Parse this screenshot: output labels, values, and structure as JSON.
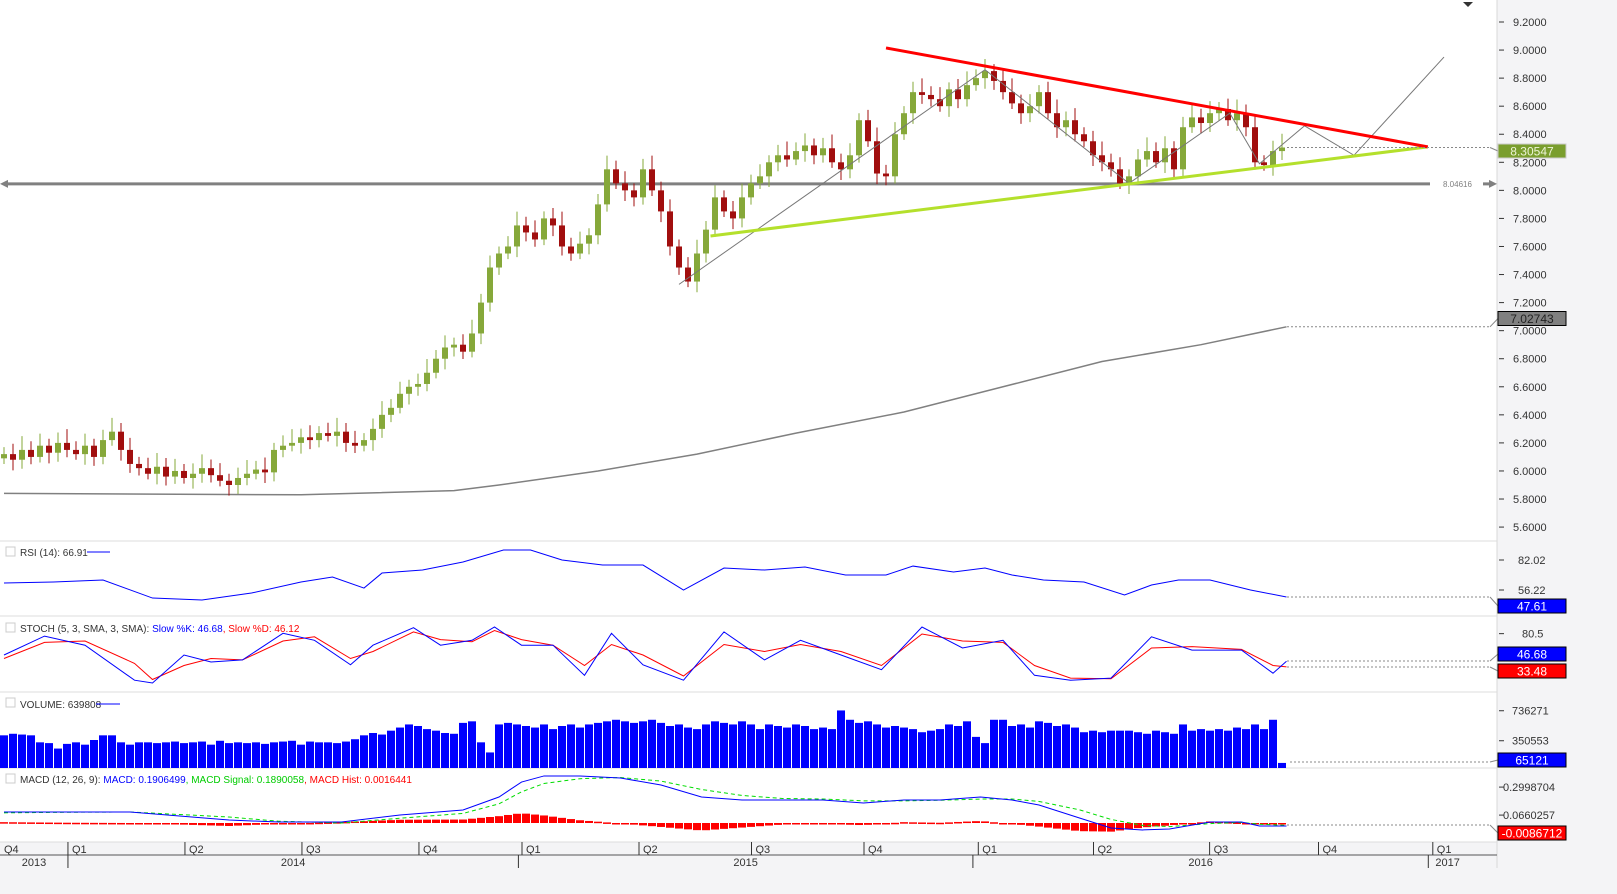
{
  "x_axis": {
    "quarters": [
      [
        "Q4",
        0
      ],
      [
        "Q1",
        7.55
      ],
      [
        "Q2",
        20.55
      ],
      [
        "Q3",
        33.55
      ],
      [
        "Q4",
        46.55
      ],
      [
        "Q1",
        58
      ],
      [
        "Q2",
        71
      ],
      [
        "Q3",
        83.5
      ],
      [
        "Q4",
        96
      ],
      [
        "Q1",
        108.7
      ],
      [
        "Q2",
        121.5
      ],
      [
        "Q3",
        134.4
      ],
      [
        "Q4",
        146.5
      ],
      [
        "Q1",
        159.2
      ]
    ],
    "years": [
      [
        "2013",
        0,
        7.55
      ],
      [
        "2014",
        7.55,
        57.6
      ],
      [
        "2015",
        57.6,
        108.1
      ],
      [
        "2016",
        108.1,
        158.7
      ],
      [
        "2017",
        158.7,
        163
      ]
    ]
  },
  "chart_data": [
    {
      "type": "candlestick",
      "panel": "price",
      "yticks": [
        "9.2000",
        "9.0000",
        "8.8000",
        "8.6000",
        "8.4000",
        "8.2000",
        "8.0000",
        "7.8000",
        "7.6000",
        "7.4000",
        "7.2000",
        "7.0000",
        "6.8000",
        "6.6000",
        "6.4000",
        "6.2000",
        "6.0000",
        "5.8000",
        "5.6000"
      ],
      "ylim": [
        5.6,
        9.2
      ],
      "closes": [
        6.12,
        6.08,
        6.15,
        6.1,
        6.18,
        6.13,
        6.2,
        6.15,
        6.12,
        6.18,
        6.1,
        6.22,
        6.28,
        6.15,
        6.05,
        6.02,
        5.98,
        6.03,
        5.96,
        6.0,
        5.95,
        5.98,
        6.02,
        5.97,
        5.93,
        5.9,
        5.95,
        5.98,
        6.01,
        5.99,
        6.15,
        6.18,
        6.2,
        6.24,
        6.22,
        6.27,
        6.25,
        6.28,
        6.2,
        6.18,
        6.22,
        6.3,
        6.4,
        6.45,
        6.55,
        6.6,
        6.62,
        6.7,
        6.8,
        6.88,
        6.9,
        6.85,
        6.98,
        7.2,
        7.45,
        7.55,
        7.6,
        7.75,
        7.7,
        7.65,
        7.8,
        7.75,
        7.6,
        7.55,
        7.62,
        7.68,
        7.9,
        8.15,
        8.05,
        8.0,
        7.95,
        8.15,
        8.0,
        7.85,
        7.6,
        7.45,
        7.35,
        7.55,
        7.72,
        7.95,
        7.85,
        7.8,
        7.95,
        8.05,
        8.1,
        8.2,
        8.25,
        8.22,
        8.28,
        8.32,
        8.25,
        8.3,
        8.2,
        8.15,
        8.25,
        8.5,
        8.35,
        8.12,
        8.1,
        8.4,
        8.55,
        8.7,
        8.68,
        8.65,
        8.6,
        8.72,
        8.65,
        8.75,
        8.8,
        8.85,
        8.78,
        8.7,
        8.62,
        8.55,
        8.6,
        8.7,
        8.55,
        8.45,
        8.5,
        8.4,
        8.35,
        8.25,
        8.2,
        8.15,
        8.05,
        8.1,
        8.22,
        8.28,
        8.2,
        8.3,
        8.15,
        8.45,
        8.52,
        8.48,
        8.55,
        8.58,
        8.5,
        8.55,
        8.45,
        8.2,
        8.18,
        8.28,
        8.30547
      ],
      "moving_average": [
        [
          0,
          5.84
        ],
        [
          33,
          5.83
        ],
        [
          50,
          5.86
        ],
        [
          55,
          5.9
        ],
        [
          66,
          6.0
        ],
        [
          77,
          6.12
        ],
        [
          88,
          6.27
        ],
        [
          100,
          6.42
        ],
        [
          111,
          6.6
        ],
        [
          122,
          6.78
        ],
        [
          133,
          6.9
        ],
        [
          142.5,
          7.02743
        ]
      ],
      "trendline_resistance": [
        [
          98,
          9.015
        ],
        [
          158.2,
          8.31
        ]
      ],
      "trendline_support": [
        [
          78.5,
          7.675
        ],
        [
          158.2,
          8.31
        ]
      ],
      "projection_path": [
        [
          75,
          7.33
        ],
        [
          109,
          8.86
        ],
        [
          125,
          8.05
        ],
        [
          136.2,
          8.55
        ],
        [
          139.5,
          8.19
        ],
        [
          144.5,
          8.46
        ],
        [
          150,
          8.25
        ],
        [
          160,
          8.95
        ]
      ],
      "horizontal_level": {
        "value": 8.04616,
        "label": "8.04616"
      },
      "last_price": {
        "value": 8.30547,
        "label": "8.30547"
      },
      "ma_last": {
        "value": 7.02743,
        "label": "7.02743"
      },
      "colors": {
        "up": "#86a83a",
        "down": "#a10e0e",
        "resistance": "#ff0000",
        "support": "#b4e02c",
        "level": "#808080",
        "ma": "#808080"
      }
    },
    {
      "type": "line",
      "panel": "rsi",
      "legend": "RSI (14): 66.91",
      "yticks": [
        "82.02",
        "56.22"
      ],
      "x": [
        0,
        5.5,
        11,
        16.5,
        22,
        27.5,
        33,
        36.5,
        40,
        42,
        46.5,
        51,
        55.5,
        58.5,
        62,
        66.5,
        71,
        75.5,
        80,
        84.5,
        89,
        93.5,
        98,
        101,
        105.5,
        109,
        112,
        115.5,
        120,
        124.5,
        127.5,
        130.5,
        134,
        138.5,
        142.5
      ],
      "values": [
        62.2,
        63.1,
        64.8,
        49.3,
        47.6,
        53.6,
        63.1,
        67.4,
        57.9,
        70.8,
        73.4,
        80.3,
        90.6,
        90.6,
        82.0,
        77.7,
        77.7,
        56.2,
        75.1,
        73.4,
        76.0,
        69.1,
        69.1,
        76.8,
        71.7,
        75.1,
        69.1,
        64.8,
        63.1,
        51.9,
        60.5,
        64.8,
        64.8,
        56.2,
        50.2
      ],
      "last_label": "47.61",
      "color": "#0000ff"
    },
    {
      "type": "line",
      "panel": "stoch",
      "legend_prefix": "STOCH (5, 3, SMA, 3, SMA): ",
      "legend_k": "Slow %K: 46.68",
      "legend_d": "Slow %D: 46.12",
      "yticks": [
        "80.5"
      ],
      "x": [
        0,
        4.5,
        9,
        14.5,
        16.5,
        20,
        23,
        26.5,
        31,
        34.5,
        38.5,
        41,
        45.5,
        48.5,
        52,
        54.5,
        57.5,
        61,
        64.5,
        67.5,
        71,
        75.5,
        80,
        84.5,
        88.5,
        93,
        97.5,
        102,
        106.5,
        111,
        114.5,
        118.5,
        123,
        127.5,
        132,
        137.5,
        141,
        142.5
      ],
      "k": [
        50,
        77,
        64,
        14,
        10,
        50,
        40,
        43,
        81,
        71,
        36,
        64,
        89,
        64,
        71,
        90,
        64,
        64,
        21,
        81,
        36,
        14,
        83,
        43,
        71,
        50,
        29,
        90,
        60,
        71,
        21,
        14,
        17,
        76,
        57,
        57,
        24,
        41
      ],
      "d": [
        45,
        68,
        70,
        38,
        15,
        35,
        45,
        43,
        70,
        76,
        45,
        55,
        83,
        72,
        69,
        85,
        72,
        64,
        35,
        65,
        50,
        20,
        65,
        55,
        65,
        55,
        35,
        80,
        70,
        68,
        35,
        17,
        16,
        60,
        62,
        58,
        35,
        33
      ],
      "last_k_label": "46.68",
      "last_d_label": "33.48",
      "colors": {
        "k": "#0000ff",
        "d": "#ff0000"
      }
    },
    {
      "type": "bar",
      "panel": "volume",
      "legend": "VOLUME: 639808",
      "yticks": [
        "736271",
        "350553"
      ],
      "values": [
        420000,
        440000,
        430000,
        420000,
        330000,
        320000,
        250000,
        310000,
        330000,
        300000,
        360000,
        420000,
        420000,
        330000,
        300000,
        330000,
        330000,
        320000,
        330000,
        340000,
        320000,
        330000,
        340000,
        300000,
        350000,
        320000,
        330000,
        320000,
        330000,
        310000,
        330000,
        340000,
        350000,
        300000,
        340000,
        330000,
        330000,
        320000,
        340000,
        370000,
        420000,
        450000,
        430000,
        480000,
        520000,
        560000,
        540000,
        500000,
        480000,
        450000,
        440000,
        580000,
        600000,
        330000,
        200000,
        560000,
        580000,
        560000,
        540000,
        520000,
        560000,
        500000,
        540000,
        560000,
        520000,
        560000,
        580000,
        600000,
        620000,
        600000,
        580000,
        600000,
        620000,
        580000,
        540000,
        560000,
        520000,
        500000,
        560000,
        600000,
        580000,
        560000,
        600000,
        560000,
        500000,
        560000,
        540000,
        520000,
        560000,
        540000,
        500000,
        520000,
        500000,
        740000,
        620000,
        580000,
        600000,
        560000,
        520000,
        540000,
        520000,
        500000,
        460000,
        480000,
        500000,
        560000,
        540000,
        600000,
        400000,
        320000,
        620000,
        620000,
        540000,
        560000,
        520000,
        600000,
        580000,
        540000,
        560000,
        520000,
        460000,
        480000,
        460000,
        480000,
        480000,
        480000,
        460000,
        440000,
        480000,
        460000,
        440000,
        560000,
        480000,
        500000,
        480000,
        500000,
        480000,
        520000,
        500000,
        560000,
        500000,
        620000,
        65121
      ],
      "last_label": "65121",
      "color": "#0000ff"
    },
    {
      "type": "line",
      "panel": "macd",
      "legend_prefix": "MACD (12, 26, 9): ",
      "legend_macd": "MACD: 0.1906499",
      "legend_signal": "MACD Signal: 0.1890058",
      "legend_hist": "MACD Hist: 0.0016441",
      "yticks": [
        "0.2998704",
        "0.0660257"
      ],
      "x": [
        0,
        7.5,
        14,
        25,
        30.5,
        37.5,
        44,
        51,
        55,
        57.5,
        60,
        64,
        68.5,
        73,
        77.5,
        82,
        86.5,
        91,
        95.5,
        100,
        104,
        108.5,
        112,
        115,
        119.5,
        123,
        126.5,
        129.5,
        134,
        137.5,
        139.5,
        142.5
      ],
      "macd": [
        0.092,
        0.092,
        0.092,
        0.025,
        0.008,
        0.008,
        0.067,
        0.109,
        0.217,
        0.342,
        0.393,
        0.393,
        0.376,
        0.317,
        0.217,
        0.192,
        0.192,
        0.192,
        0.167,
        0.192,
        0.192,
        0.217,
        0.192,
        0.15,
        0.042,
        -0.042,
        -0.058,
        -0.05,
        0.008,
        0.008,
        -0.025,
        -0.025
      ],
      "signal": [
        0.085,
        0.09,
        0.092,
        0.05,
        0.015,
        0.0,
        0.04,
        0.08,
        0.16,
        0.26,
        0.33,
        0.37,
        0.38,
        0.35,
        0.28,
        0.23,
        0.205,
        0.2,
        0.185,
        0.185,
        0.19,
        0.2,
        0.2,
        0.18,
        0.11,
        0.03,
        -0.02,
        -0.03,
        -0.005,
        0.005,
        -0.01,
        -0.02
      ],
      "last_label": "-0.0086712",
      "colors": {
        "macd": "#0000ff",
        "signal": "#00dd00",
        "hist": "#ff0000"
      }
    }
  ]
}
